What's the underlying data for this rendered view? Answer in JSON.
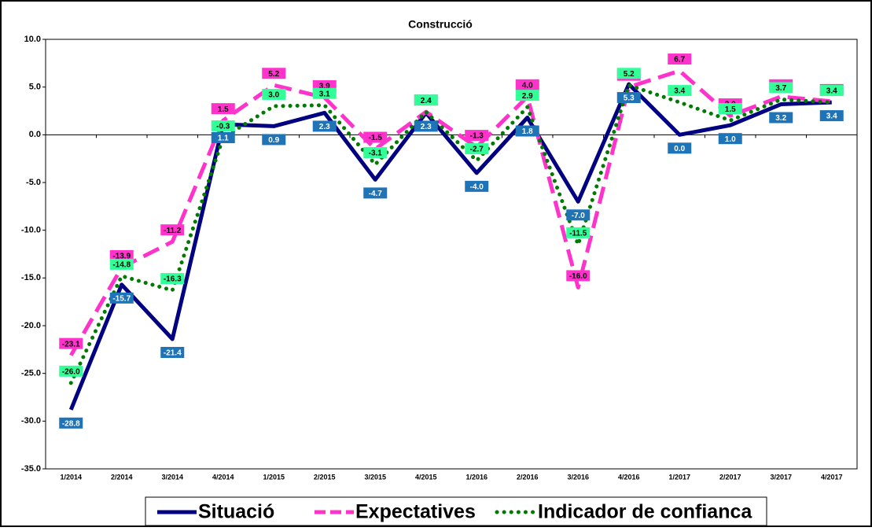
{
  "chart_data": {
    "type": "line",
    "title": "Construcció",
    "categories": [
      "1/2014",
      "2/2014",
      "3/2014",
      "4/2014",
      "1/2015",
      "2/2015",
      "3/2015",
      "4/2015",
      "1/2016",
      "2/2016",
      "3/2016",
      "4/2016",
      "1/2017",
      "2/2017",
      "3/2017",
      "4/2017"
    ],
    "series": [
      {
        "name": "Situació",
        "color": "#000080",
        "style": "solid",
        "values": [
          -28.8,
          -15.7,
          -21.4,
          1.1,
          0.9,
          2.3,
          -4.7,
          2.3,
          -4.0,
          1.8,
          -7.0,
          5.3,
          0.0,
          1.0,
          3.2,
          3.4
        ],
        "value_labels": [
          "-28.8",
          "-15.7",
          "-21.4",
          "1.1",
          "0.9",
          "2.3",
          "-4.7",
          "2.3",
          "-4.0",
          "1.8",
          "-7.0",
          "5.3",
          "0.0",
          "1.0",
          "3.2",
          "3.4"
        ],
        "label_color": "#1f73b7",
        "label_text_color": "#ffffff",
        "label_position": "below"
      },
      {
        "name": "Expectatives",
        "color": "#ff33cc",
        "style": "dashed",
        "values": [
          -23.1,
          -13.9,
          -11.2,
          1.5,
          5.2,
          3.9,
          -1.5,
          2.4,
          -1.3,
          4.0,
          -16.0,
          5.0,
          6.7,
          2.0,
          4.0,
          3.5
        ],
        "value_labels": [
          "-23.1",
          "-13.9",
          "-11.2",
          "1.5",
          "5.2",
          "3.9",
          "-1.5",
          "2.4",
          "-1.3",
          "4.0",
          "-16.0",
          "5.0",
          "6.7",
          "2.0",
          "4.0",
          "3.5"
        ],
        "label_color": "#ff33cc",
        "label_text_color": "#000000",
        "label_position": "above"
      },
      {
        "name": "Indicador de confianca",
        "color": "#007a00",
        "style": "dotted",
        "values": [
          -26.0,
          -14.8,
          -16.3,
          -0.3,
          3.0,
          3.1,
          -3.1,
          2.4,
          -2.7,
          2.9,
          -11.5,
          5.2,
          3.4,
          1.5,
          3.7,
          3.4
        ],
        "value_labels": [
          "-26.0",
          "-14.8",
          "-16.3",
          "-0.3",
          "3.0",
          "3.1",
          "-3.1",
          "2.4",
          "-2.7",
          "2.9",
          "-11.5",
          "5.2",
          "3.4",
          "1.5",
          "3.7",
          "3.4"
        ],
        "label_color": "#33ff99",
        "label_text_color": "#000000",
        "label_position": "above"
      }
    ],
    "ylim": [
      -35,
      10
    ],
    "yticks": [
      {
        "value": -35,
        "label": "-35.0"
      },
      {
        "value": -30,
        "label": "-30.0"
      },
      {
        "value": -25,
        "label": "-25.0"
      },
      {
        "value": -20,
        "label": "-20.0"
      },
      {
        "value": -15,
        "label": "-15.0"
      },
      {
        "value": -10,
        "label": "-10.0"
      },
      {
        "value": -5,
        "label": "-5.0"
      },
      {
        "value": 0,
        "label": "0.0"
      },
      {
        "value": 5,
        "label": "5.0"
      },
      {
        "value": 10,
        "label": "10.0"
      }
    ],
    "grid": false,
    "legend": "bottom"
  }
}
